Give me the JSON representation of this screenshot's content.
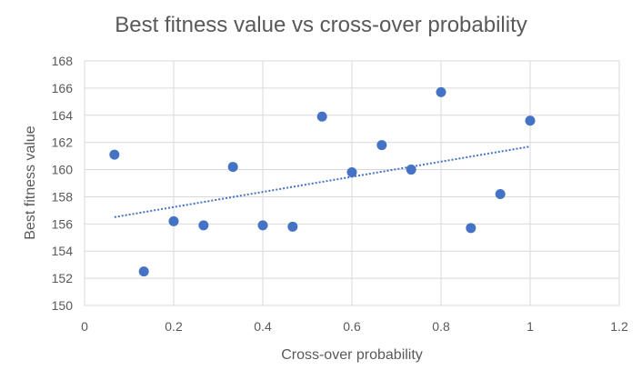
{
  "chart_data": {
    "type": "scatter",
    "title": "Best fitness value vs cross-over probability",
    "xlabel": "Cross-over probability",
    "ylabel": "Best fitness value",
    "xlim": [
      0,
      1.2
    ],
    "ylim": [
      150,
      168
    ],
    "x_ticks": [
      "0",
      "0.2",
      "0.4",
      "0.6",
      "0.8",
      "1",
      "1.2"
    ],
    "y_ticks": [
      "150",
      "152",
      "154",
      "156",
      "158",
      "160",
      "162",
      "164",
      "166",
      "168"
    ],
    "grid": true,
    "legend": "none",
    "series": [
      {
        "marker_color": "#4472c4",
        "points": [
          {
            "x": 0.067,
            "y": 161.1
          },
          {
            "x": 0.133,
            "y": 152.5
          },
          {
            "x": 0.2,
            "y": 156.2
          },
          {
            "x": 0.267,
            "y": 155.9
          },
          {
            "x": 0.333,
            "y": 160.2
          },
          {
            "x": 0.4,
            "y": 155.9
          },
          {
            "x": 0.467,
            "y": 155.8
          },
          {
            "x": 0.533,
            "y": 163.9
          },
          {
            "x": 0.6,
            "y": 159.8
          },
          {
            "x": 0.667,
            "y": 161.8
          },
          {
            "x": 0.733,
            "y": 160.0
          },
          {
            "x": 0.8,
            "y": 165.7
          },
          {
            "x": 0.867,
            "y": 155.7
          },
          {
            "x": 0.933,
            "y": 158.2
          },
          {
            "x": 1.0,
            "y": 163.6
          }
        ]
      }
    ],
    "trendline": {
      "type": "linear",
      "style": "dotted",
      "color": "#4472c4",
      "start": {
        "x": 0.067,
        "y": 156.5
      },
      "end": {
        "x": 1.0,
        "y": 161.7
      }
    }
  }
}
